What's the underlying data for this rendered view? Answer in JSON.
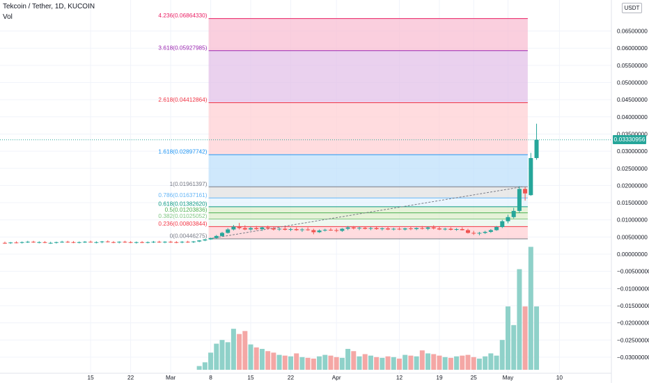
{
  "header": {
    "title": "Tekcoin / Tether, 1D, KUCOIN",
    "volume_label": "Vol"
  },
  "price_axis": {
    "unit": "USDT",
    "ticks": [
      {
        "v": 0.065,
        "label": "0.06500000"
      },
      {
        "v": 0.06,
        "label": "0.06000000"
      },
      {
        "v": 0.055,
        "label": "0.05500000"
      },
      {
        "v": 0.05,
        "label": "0.05000000"
      },
      {
        "v": 0.045,
        "label": "0.04500000"
      },
      {
        "v": 0.04,
        "label": "0.04000000"
      },
      {
        "v": 0.035,
        "label": "0.03500000"
      },
      {
        "v": 0.03,
        "label": "0.03000000"
      },
      {
        "v": 0.025,
        "label": "0.02500000"
      },
      {
        "v": 0.02,
        "label": "0.02000000"
      },
      {
        "v": 0.015,
        "label": "0.01500000"
      },
      {
        "v": 0.01,
        "label": "0.01000000"
      },
      {
        "v": 0.005,
        "label": "0.00500000"
      },
      {
        "v": 0.0,
        "label": "0.00000000"
      },
      {
        "v": -0.005,
        "label": "−0.00500000"
      },
      {
        "v": -0.01,
        "label": "−0.01000000"
      },
      {
        "v": -0.015,
        "label": "−0.01500000"
      },
      {
        "v": -0.02,
        "label": "−0.02000000"
      },
      {
        "v": -0.025,
        "label": "−0.02500000"
      },
      {
        "v": -0.03,
        "label": "−0.03000000"
      }
    ],
    "last_price": "0.03330956"
  },
  "time_axis": {
    "ticks": [
      {
        "day": 15,
        "label": "15"
      },
      {
        "day": 22,
        "label": "22"
      },
      {
        "day": 29,
        "label": "Mar"
      },
      {
        "day": 36,
        "label": "8"
      },
      {
        "day": 43,
        "label": "15"
      },
      {
        "day": 50,
        "label": "22"
      },
      {
        "day": 58,
        "label": "Apr"
      },
      {
        "day": 69,
        "label": "12"
      },
      {
        "day": 76,
        "label": "19"
      },
      {
        "day": 82,
        "label": "25"
      },
      {
        "day": 88,
        "label": "May"
      },
      {
        "day": 97,
        "label": "10"
      }
    ]
  },
  "fibonacci": {
    "start_day": 36,
    "end_day": 90,
    "levels": [
      {
        "ratio": "4.236",
        "price": 0.0686433,
        "label": "4.236(0.06864330)",
        "color": "#e91e63",
        "fill": "#f8bbd0"
      },
      {
        "ratio": "3.618",
        "price": 0.05927985,
        "label": "3.618(0.05927985)",
        "color": "#9c27b0",
        "fill": "#e1bee7"
      },
      {
        "ratio": "2.618",
        "price": 0.04412864,
        "label": "2.618(0.04412864)",
        "color": "#f23645",
        "fill": "#ffcdd2"
      },
      {
        "ratio": "1.618",
        "price": 0.02897742,
        "label": "1.618(0.02897742)",
        "color": "#2196f3",
        "fill": "#bbdefb"
      },
      {
        "ratio": "1",
        "price": 0.01961397,
        "label": "1(0.01961397)",
        "color": "#787b86",
        "fill": "#e0e0e0"
      },
      {
        "ratio": "0.786",
        "price": 0.01637161,
        "label": "0.786(0.01637161)",
        "color": "#64b5f6",
        "fill": "#e3f2fd"
      },
      {
        "ratio": "0.618",
        "price": 0.0138262,
        "label": "0.618(0.01382620)",
        "color": "#089981",
        "fill": "#dcedc8"
      },
      {
        "ratio": "0.5",
        "price": 0.01203836,
        "label": "0.5(0.01203836)",
        "color": "#4caf50",
        "fill": "#dcedc8"
      },
      {
        "ratio": "0.382",
        "price": 0.01025052,
        "label": "0.382(0.01025052)",
        "color": "#81c784",
        "fill": "#e8f5e9"
      },
      {
        "ratio": "0.236",
        "price": 0.00803844,
        "label": "0.236(0.00803844)",
        "color": "#f23645",
        "fill": "#ffcdd2"
      },
      {
        "ratio": "0",
        "price": 0.00446275,
        "label": "0(0.00446275)",
        "color": "#787b86",
        "fill": null
      }
    ]
  },
  "colors": {
    "up": "#26a69a",
    "down": "#ef5350",
    "up_volume": "#8fd1c9",
    "down_volume": "#f4a7a5",
    "grid": "#f0f3fa",
    "axis_text": "#131722"
  },
  "chart_data": {
    "type": "candlestick",
    "title": "Tekcoin / Tether, 1D, KUCOIN",
    "x_unit": "days since 2021-02-08 (x axis labels: 15, 22, Mar, 8, 15, 22, Apr, 12, 19, 25, May, 10)",
    "ylabel": "USDT",
    "ylim": [
      -0.033,
      0.071
    ],
    "candles": [
      {
        "d": 0,
        "o": 0.0033,
        "h": 0.00365,
        "l": 0.003,
        "c": 0.0032,
        "v": 0.0
      },
      {
        "d": 1,
        "o": 0.0032,
        "h": 0.00355,
        "l": 0.003,
        "c": 0.0034,
        "v": 0.0
      },
      {
        "d": 2,
        "o": 0.0034,
        "h": 0.00375,
        "l": 0.00315,
        "c": 0.0033,
        "v": 0.0
      },
      {
        "d": 3,
        "o": 0.0033,
        "h": 0.0037,
        "l": 0.0031,
        "c": 0.0035,
        "v": 0.0
      },
      {
        "d": 4,
        "o": 0.0035,
        "h": 0.0039,
        "l": 0.00325,
        "c": 0.0036,
        "v": 0.0
      },
      {
        "d": 5,
        "o": 0.0036,
        "h": 0.0039,
        "l": 0.0033,
        "c": 0.0034,
        "v": 0.0
      },
      {
        "d": 6,
        "o": 0.0034,
        "h": 0.00375,
        "l": 0.00315,
        "c": 0.0035,
        "v": 0.0
      },
      {
        "d": 7,
        "o": 0.0035,
        "h": 0.0038,
        "l": 0.0032,
        "c": 0.0033,
        "v": 0.0
      },
      {
        "d": 8,
        "o": 0.0033,
        "h": 0.0036,
        "l": 0.003,
        "c": 0.0033,
        "v": 0.0
      },
      {
        "d": 9,
        "o": 0.0033,
        "h": 0.00365,
        "l": 0.0031,
        "c": 0.0035,
        "v": 0.0
      },
      {
        "d": 10,
        "o": 0.0035,
        "h": 0.0039,
        "l": 0.0033,
        "c": 0.0036,
        "v": 0.0
      },
      {
        "d": 11,
        "o": 0.0036,
        "h": 0.0039,
        "l": 0.0033,
        "c": 0.0035,
        "v": 0.0
      },
      {
        "d": 12,
        "o": 0.0035,
        "h": 0.0038,
        "l": 0.0032,
        "c": 0.0034,
        "v": 0.0
      },
      {
        "d": 13,
        "o": 0.0034,
        "h": 0.0037,
        "l": 0.00315,
        "c": 0.0035,
        "v": 0.0
      },
      {
        "d": 14,
        "o": 0.0035,
        "h": 0.00385,
        "l": 0.00325,
        "c": 0.0036,
        "v": 0.0
      },
      {
        "d": 15,
        "o": 0.0036,
        "h": 0.00395,
        "l": 0.00335,
        "c": 0.0034,
        "v": 0.0
      },
      {
        "d": 16,
        "o": 0.0034,
        "h": 0.00375,
        "l": 0.00315,
        "c": 0.0035,
        "v": 0.0
      },
      {
        "d": 17,
        "o": 0.0035,
        "h": 0.00385,
        "l": 0.0032,
        "c": 0.0037,
        "v": 0.0
      },
      {
        "d": 18,
        "o": 0.0037,
        "h": 0.004,
        "l": 0.0034,
        "c": 0.0035,
        "v": 0.0
      },
      {
        "d": 19,
        "o": 0.0035,
        "h": 0.0038,
        "l": 0.0032,
        "c": 0.0034,
        "v": 0.0
      },
      {
        "d": 20,
        "o": 0.0034,
        "h": 0.00375,
        "l": 0.00315,
        "c": 0.0036,
        "v": 0.0
      },
      {
        "d": 21,
        "o": 0.0036,
        "h": 0.0039,
        "l": 0.0033,
        "c": 0.0035,
        "v": 0.0
      },
      {
        "d": 22,
        "o": 0.0035,
        "h": 0.0038,
        "l": 0.0032,
        "c": 0.0034,
        "v": 0.0
      },
      {
        "d": 23,
        "o": 0.0034,
        "h": 0.0037,
        "l": 0.0031,
        "c": 0.0035,
        "v": 0.0
      },
      {
        "d": 24,
        "o": 0.0035,
        "h": 0.0038,
        "l": 0.0032,
        "c": 0.0034,
        "v": 0.0
      },
      {
        "d": 25,
        "o": 0.0034,
        "h": 0.0037,
        "l": 0.00315,
        "c": 0.0035,
        "v": 0.0
      },
      {
        "d": 26,
        "o": 0.0035,
        "h": 0.00385,
        "l": 0.00325,
        "c": 0.0036,
        "v": 0.0
      },
      {
        "d": 27,
        "o": 0.0036,
        "h": 0.0039,
        "l": 0.0033,
        "c": 0.0035,
        "v": 0.0
      },
      {
        "d": 28,
        "o": 0.0035,
        "h": 0.0038,
        "l": 0.0032,
        "c": 0.0036,
        "v": 0.0
      },
      {
        "d": 29,
        "o": 0.0036,
        "h": 0.0039,
        "l": 0.0033,
        "c": 0.0035,
        "v": 0.0
      },
      {
        "d": 30,
        "o": 0.0035,
        "h": 0.0038,
        "l": 0.0032,
        "c": 0.0034,
        "v": 0.0
      },
      {
        "d": 31,
        "o": 0.0034,
        "h": 0.0038,
        "l": 0.0032,
        "c": 0.0036,
        "v": 0.0
      },
      {
        "d": 32,
        "o": 0.0036,
        "h": 0.0039,
        "l": 0.0033,
        "c": 0.0035,
        "v": 0.0
      },
      {
        "d": 33,
        "o": 0.0035,
        "h": 0.00385,
        "l": 0.00325,
        "c": 0.0037,
        "v": 0.0
      },
      {
        "d": 34,
        "o": 0.0037,
        "h": 0.0041,
        "l": 0.0035,
        "c": 0.004,
        "v": 0.0005
      },
      {
        "d": 35,
        "o": 0.004,
        "h": 0.0044,
        "l": 0.0038,
        "c": 0.0043,
        "v": 0.001
      },
      {
        "d": 36,
        "o": 0.0043,
        "h": 0.0048,
        "l": 0.0042,
        "c": 0.0047,
        "v": 0.0023
      },
      {
        "d": 37,
        "o": 0.0047,
        "h": 0.0056,
        "l": 0.0045,
        "c": 0.0053,
        "v": 0.0035
      },
      {
        "d": 38,
        "o": 0.0053,
        "h": 0.0065,
        "l": 0.0051,
        "c": 0.0062,
        "v": 0.004
      },
      {
        "d": 39,
        "o": 0.0062,
        "h": 0.0076,
        "l": 0.006,
        "c": 0.0072,
        "v": 0.0037
      },
      {
        "d": 40,
        "o": 0.0072,
        "h": 0.0085,
        "l": 0.0069,
        "c": 0.008,
        "v": 0.0055
      },
      {
        "d": 41,
        "o": 0.008,
        "h": 0.0091,
        "l": 0.0072,
        "c": 0.0076,
        "v": 0.0048
      },
      {
        "d": 42,
        "o": 0.0076,
        "h": 0.0084,
        "l": 0.007,
        "c": 0.0072,
        "v": 0.0052
      },
      {
        "d": 43,
        "o": 0.0072,
        "h": 0.008,
        "l": 0.0068,
        "c": 0.0076,
        "v": 0.0034
      },
      {
        "d": 44,
        "o": 0.0076,
        "h": 0.0082,
        "l": 0.007,
        "c": 0.0073,
        "v": 0.003
      },
      {
        "d": 45,
        "o": 0.0073,
        "h": 0.008,
        "l": 0.0068,
        "c": 0.0078,
        "v": 0.0028
      },
      {
        "d": 46,
        "o": 0.0078,
        "h": 0.0083,
        "l": 0.0072,
        "c": 0.0075,
        "v": 0.0025
      },
      {
        "d": 47,
        "o": 0.0075,
        "h": 0.008,
        "l": 0.0069,
        "c": 0.0072,
        "v": 0.0023
      },
      {
        "d": 48,
        "o": 0.0072,
        "h": 0.0078,
        "l": 0.0068,
        "c": 0.0074,
        "v": 0.002
      },
      {
        "d": 49,
        "o": 0.0074,
        "h": 0.0079,
        "l": 0.0069,
        "c": 0.0071,
        "v": 0.0019
      },
      {
        "d": 50,
        "o": 0.0071,
        "h": 0.0077,
        "l": 0.0067,
        "c": 0.0073,
        "v": 0.0018
      },
      {
        "d": 51,
        "o": 0.0073,
        "h": 0.0078,
        "l": 0.0068,
        "c": 0.007,
        "v": 0.0022
      },
      {
        "d": 52,
        "o": 0.007,
        "h": 0.0076,
        "l": 0.0065,
        "c": 0.0072,
        "v": 0.0017
      },
      {
        "d": 53,
        "o": 0.0072,
        "h": 0.0078,
        "l": 0.0068,
        "c": 0.007,
        "v": 0.0016
      },
      {
        "d": 54,
        "o": 0.007,
        "h": 0.0074,
        "l": 0.0058,
        "c": 0.0064,
        "v": 0.0015
      },
      {
        "d": 55,
        "o": 0.0064,
        "h": 0.0072,
        "l": 0.0062,
        "c": 0.0069,
        "v": 0.0018
      },
      {
        "d": 56,
        "o": 0.0069,
        "h": 0.0074,
        "l": 0.0066,
        "c": 0.0071,
        "v": 0.002
      },
      {
        "d": 57,
        "o": 0.0071,
        "h": 0.0076,
        "l": 0.0068,
        "c": 0.007,
        "v": 0.0019
      },
      {
        "d": 58,
        "o": 0.007,
        "h": 0.0075,
        "l": 0.0064,
        "c": 0.0068,
        "v": 0.0017
      },
      {
        "d": 59,
        "o": 0.0068,
        "h": 0.0076,
        "l": 0.0065,
        "c": 0.0074,
        "v": 0.0016
      },
      {
        "d": 60,
        "o": 0.0074,
        "h": 0.0082,
        "l": 0.007,
        "c": 0.0078,
        "v": 0.0028
      },
      {
        "d": 61,
        "o": 0.0078,
        "h": 0.0082,
        "l": 0.0072,
        "c": 0.0075,
        "v": 0.0025
      },
      {
        "d": 62,
        "o": 0.0075,
        "h": 0.008,
        "l": 0.007,
        "c": 0.0077,
        "v": 0.0018
      },
      {
        "d": 63,
        "o": 0.0077,
        "h": 0.0081,
        "l": 0.0072,
        "c": 0.0074,
        "v": 0.0021
      },
      {
        "d": 64,
        "o": 0.0074,
        "h": 0.0079,
        "l": 0.007,
        "c": 0.0076,
        "v": 0.0019
      },
      {
        "d": 65,
        "o": 0.0076,
        "h": 0.008,
        "l": 0.0071,
        "c": 0.0073,
        "v": 0.0017
      },
      {
        "d": 66,
        "o": 0.0073,
        "h": 0.0078,
        "l": 0.0069,
        "c": 0.0075,
        "v": 0.0016
      },
      {
        "d": 67,
        "o": 0.0075,
        "h": 0.0079,
        "l": 0.007,
        "c": 0.0072,
        "v": 0.0018
      },
      {
        "d": 68,
        "o": 0.0072,
        "h": 0.0077,
        "l": 0.0069,
        "c": 0.0074,
        "v": 0.0017
      },
      {
        "d": 69,
        "o": 0.0074,
        "h": 0.0078,
        "l": 0.007,
        "c": 0.0072,
        "v": 0.0015
      },
      {
        "d": 70,
        "o": 0.0072,
        "h": 0.0077,
        "l": 0.0069,
        "c": 0.0075,
        "v": 0.002
      },
      {
        "d": 71,
        "o": 0.0075,
        "h": 0.0079,
        "l": 0.007,
        "c": 0.0073,
        "v": 0.0019
      },
      {
        "d": 72,
        "o": 0.0073,
        "h": 0.0078,
        "l": 0.007,
        "c": 0.0076,
        "v": 0.0018
      },
      {
        "d": 73,
        "o": 0.0076,
        "h": 0.0082,
        "l": 0.0072,
        "c": 0.0074,
        "v": 0.0026
      },
      {
        "d": 74,
        "o": 0.0074,
        "h": 0.008,
        "l": 0.007,
        "c": 0.0078,
        "v": 0.0022
      },
      {
        "d": 75,
        "o": 0.0078,
        "h": 0.0084,
        "l": 0.0072,
        "c": 0.0075,
        "v": 0.0021
      },
      {
        "d": 76,
        "o": 0.0075,
        "h": 0.008,
        "l": 0.007,
        "c": 0.0072,
        "v": 0.0019
      },
      {
        "d": 77,
        "o": 0.0072,
        "h": 0.0077,
        "l": 0.0069,
        "c": 0.0074,
        "v": 0.0017
      },
      {
        "d": 78,
        "o": 0.0074,
        "h": 0.0078,
        "l": 0.0069,
        "c": 0.0071,
        "v": 0.0016
      },
      {
        "d": 79,
        "o": 0.0071,
        "h": 0.0076,
        "l": 0.0068,
        "c": 0.0073,
        "v": 0.0018
      },
      {
        "d": 80,
        "o": 0.0073,
        "h": 0.0078,
        "l": 0.0069,
        "c": 0.007,
        "v": 0.0019
      },
      {
        "d": 81,
        "o": 0.007,
        "h": 0.0074,
        "l": 0.006,
        "c": 0.0062,
        "v": 0.002
      },
      {
        "d": 82,
        "o": 0.0062,
        "h": 0.0068,
        "l": 0.0056,
        "c": 0.006,
        "v": 0.0017
      },
      {
        "d": 83,
        "o": 0.006,
        "h": 0.0065,
        "l": 0.0055,
        "c": 0.0062,
        "v": 0.0015
      },
      {
        "d": 84,
        "o": 0.0062,
        "h": 0.0068,
        "l": 0.0059,
        "c": 0.0065,
        "v": 0.0018
      },
      {
        "d": 85,
        "o": 0.0065,
        "h": 0.0073,
        "l": 0.0062,
        "c": 0.007,
        "v": 0.0022
      },
      {
        "d": 86,
        "o": 0.007,
        "h": 0.0082,
        "l": 0.0068,
        "c": 0.0079,
        "v": 0.0019
      },
      {
        "d": 87,
        "o": 0.0079,
        "h": 0.01,
        "l": 0.0076,
        "c": 0.0096,
        "v": 0.004
      },
      {
        "d": 88,
        "o": 0.0096,
        "h": 0.0115,
        "l": 0.009,
        "c": 0.0108,
        "v": 0.0085
      },
      {
        "d": 89,
        "o": 0.0108,
        "h": 0.0135,
        "l": 0.0104,
        "c": 0.0126,
        "v": 0.006
      },
      {
        "d": 90,
        "o": 0.0126,
        "h": 0.0198,
        "l": 0.012,
        "c": 0.019,
        "v": 0.0135
      },
      {
        "d": 91,
        "o": 0.019,
        "h": 0.0196,
        "l": 0.0156,
        "c": 0.0177,
        "v": 0.0085
      },
      {
        "d": 92,
        "o": 0.0172,
        "h": 0.0295,
        "l": 0.017,
        "c": 0.028,
        "v": 0.0165
      },
      {
        "d": 93,
        "o": 0.028,
        "h": 0.038,
        "l": 0.0275,
        "c": 0.03330956,
        "v": 0.0085
      }
    ]
  }
}
